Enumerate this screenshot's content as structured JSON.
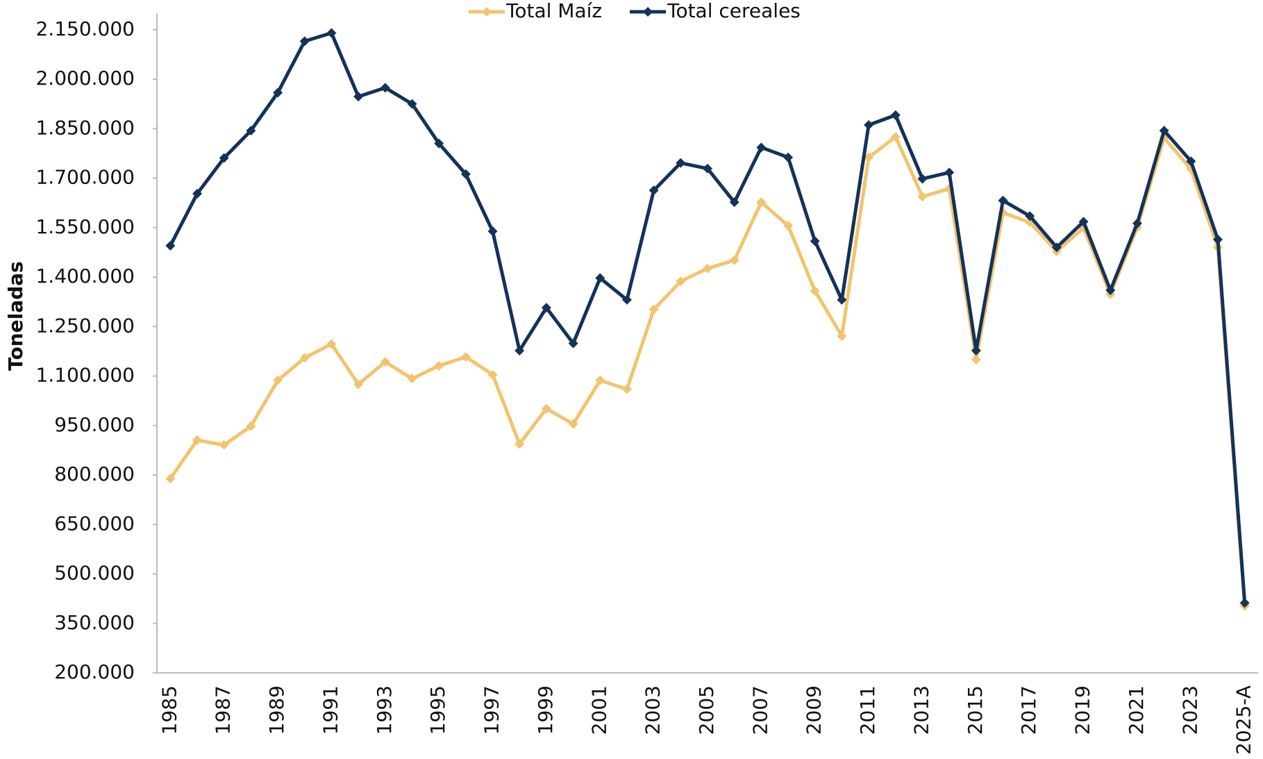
{
  "chart_data": {
    "type": "line",
    "y_label": "Toneladas",
    "categories": [
      "1985",
      null,
      "1987",
      null,
      "1989",
      null,
      "1991",
      null,
      "1993",
      null,
      "1995",
      null,
      "1997",
      null,
      "1999",
      null,
      "2001",
      null,
      "2003",
      null,
      "2005",
      null,
      "2007",
      null,
      "2009",
      null,
      "2011",
      null,
      "2013",
      null,
      "2015",
      null,
      "2017",
      null,
      "2019",
      null,
      "2021",
      null,
      "2023",
      null,
      "2025-A"
    ],
    "series": [
      {
        "name": "Total Maíz",
        "color": "#f2c46d",
        "values": [
          789000,
          906000,
          891000,
          948000,
          1087000,
          1155000,
          1197000,
          1075000,
          1143000,
          1092000,
          1131000,
          1158000,
          1104000,
          894000,
          1001000,
          955000,
          1087000,
          1060000,
          1302000,
          1387000,
          1426000,
          1451000,
          1627000,
          1556000,
          1358000,
          1221000,
          1763000,
          1825000,
          1644000,
          1668000,
          1150000,
          1595000,
          1566000,
          1478000,
          1549000,
          1348000,
          1551000,
          1822000,
          1727000,
          1490000,
          403000
        ]
      },
      {
        "name": "Total cereales",
        "color": "#14325a",
        "values": [
          1495000,
          1653000,
          1761000,
          1844000,
          1959000,
          2115000,
          2140000,
          1947000,
          1974000,
          1925000,
          1805000,
          1712000,
          1539000,
          1177000,
          1307000,
          1199000,
          1397000,
          1331000,
          1663000,
          1746000,
          1729000,
          1627000,
          1793000,
          1763000,
          1509000,
          1331000,
          1861000,
          1891000,
          1698000,
          1717000,
          1177000,
          1632000,
          1585000,
          1490000,
          1568000,
          1360000,
          1563000,
          1844000,
          1751000,
          1514000,
          412000
        ]
      }
    ],
    "ylim": [
      200000,
      2200000
    ],
    "yticks": [
      {
        "value": 200000,
        "label": "200.000"
      },
      {
        "value": 350000,
        "label": "350.000"
      },
      {
        "value": 500000,
        "label": "500.000"
      },
      {
        "value": 650000,
        "label": "650.000"
      },
      {
        "value": 800000,
        "label": "800.000"
      },
      {
        "value": 950000,
        "label": "950.000"
      },
      {
        "value": 1100000,
        "label": "1.100.000"
      },
      {
        "value": 1250000,
        "label": "1.250.000"
      },
      {
        "value": 1400000,
        "label": "1.400.000"
      },
      {
        "value": 1550000,
        "label": "1.550.000"
      },
      {
        "value": 1700000,
        "label": "1.700.000"
      },
      {
        "value": 1850000,
        "label": "1.850.000"
      },
      {
        "value": 2000000,
        "label": "2.000.000"
      },
      {
        "value": 2150000,
        "label": "2.150.000"
      }
    ],
    "legend": "top"
  }
}
